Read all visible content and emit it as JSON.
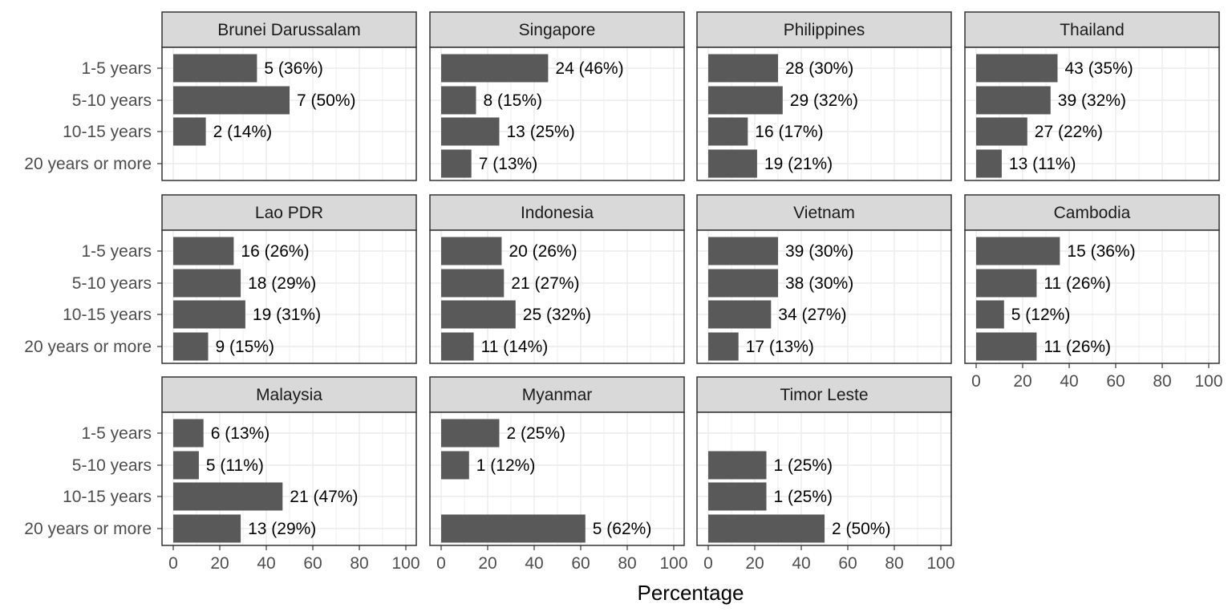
{
  "chart_data": {
    "type": "bar",
    "orientation": "horizontal",
    "xlabel": "Percentage",
    "xlim": [
      0,
      100
    ],
    "x_ticks": [
      0,
      20,
      40,
      60,
      80,
      100
    ],
    "categories": [
      "1-5 years",
      "5-10 years",
      "10-15 years",
      "20 years or more"
    ],
    "grid": true,
    "bar_color": "#595959",
    "strip_color": "#d9d9d9",
    "facets": [
      {
        "name": "Brunei Darussalam",
        "values": [
          36,
          50,
          14,
          null
        ],
        "labels": [
          "5 (36%)",
          "7 (50%)",
          "2 (14%)",
          null
        ]
      },
      {
        "name": "Singapore",
        "values": [
          46,
          15,
          25,
          13
        ],
        "labels": [
          "24 (46%)",
          "8 (15%)",
          "13 (25%)",
          "7 (13%)"
        ]
      },
      {
        "name": "Philippines",
        "values": [
          30,
          32,
          17,
          21
        ],
        "labels": [
          "28 (30%)",
          "29 (32%)",
          "16 (17%)",
          "19 (21%)"
        ]
      },
      {
        "name": "Thailand",
        "values": [
          35,
          32,
          22,
          11
        ],
        "labels": [
          "43 (35%)",
          "39 (32%)",
          "27 (22%)",
          "13 (11%)"
        ]
      },
      {
        "name": "Lao PDR",
        "values": [
          26,
          29,
          31,
          15
        ],
        "labels": [
          "16 (26%)",
          "18 (29%)",
          "19 (31%)",
          "9 (15%)"
        ]
      },
      {
        "name": "Indonesia",
        "values": [
          26,
          27,
          32,
          14
        ],
        "labels": [
          "20 (26%)",
          "21 (27%)",
          "25 (32%)",
          "11 (14%)"
        ]
      },
      {
        "name": "Vietnam",
        "values": [
          30,
          30,
          27,
          13
        ],
        "labels": [
          "39 (30%)",
          "38 (30%)",
          "34 (27%)",
          "17 (13%)"
        ]
      },
      {
        "name": "Cambodia",
        "values": [
          36,
          26,
          12,
          26
        ],
        "labels": [
          "15 (36%)",
          "11 (26%)",
          "5 (12%)",
          "11 (26%)"
        ]
      },
      {
        "name": "Malaysia",
        "values": [
          13,
          11,
          47,
          29
        ],
        "labels": [
          "6 (13%)",
          "5 (11%)",
          "21 (47%)",
          "13 (29%)"
        ]
      },
      {
        "name": "Myanmar",
        "values": [
          25,
          12,
          null,
          62
        ],
        "labels": [
          "2 (25%)",
          "1 (12%)",
          null,
          "5 (62%)"
        ]
      },
      {
        "name": "Timor Leste",
        "values": [
          null,
          25,
          25,
          50
        ],
        "labels": [
          null,
          "1 (25%)",
          "1 (25%)",
          "2 (50%)"
        ]
      }
    ]
  }
}
